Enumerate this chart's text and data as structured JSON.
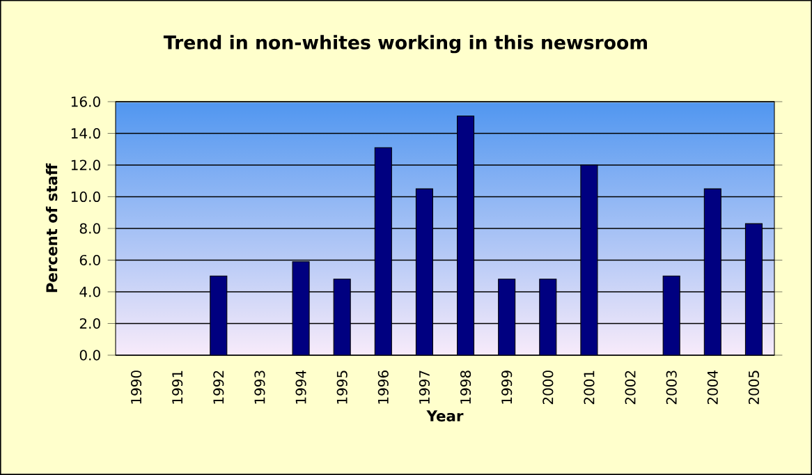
{
  "chart_data": {
    "type": "bar",
    "title": "Trend in non-whites working in this newsroom",
    "xlabel": "Year",
    "ylabel": "Percent of staff",
    "categories": [
      "1990",
      "1991",
      "1992",
      "1993",
      "1994",
      "1995",
      "1996",
      "1997",
      "1998",
      "1999",
      "2000",
      "2001",
      "2002",
      "2003",
      "2004",
      "2005"
    ],
    "values": [
      null,
      null,
      5.0,
      null,
      5.9,
      4.8,
      13.1,
      10.5,
      15.1,
      4.8,
      4.8,
      12.0,
      null,
      5.0,
      10.5,
      8.3
    ],
    "color": "#000080",
    "ylim": [
      0,
      16
    ],
    "yticks": [
      {
        "value": 0,
        "label": "0.0"
      },
      {
        "value": 2,
        "label": "2.0"
      },
      {
        "value": 4,
        "label": "4.0"
      },
      {
        "value": 6,
        "label": "6.0"
      },
      {
        "value": 8,
        "label": "8.0"
      },
      {
        "value": 10,
        "label": "10.0"
      },
      {
        "value": 12,
        "label": "12.0"
      },
      {
        "value": 14,
        "label": "14.0"
      },
      {
        "value": 16,
        "label": "16.0"
      }
    ],
    "grid": "y"
  }
}
